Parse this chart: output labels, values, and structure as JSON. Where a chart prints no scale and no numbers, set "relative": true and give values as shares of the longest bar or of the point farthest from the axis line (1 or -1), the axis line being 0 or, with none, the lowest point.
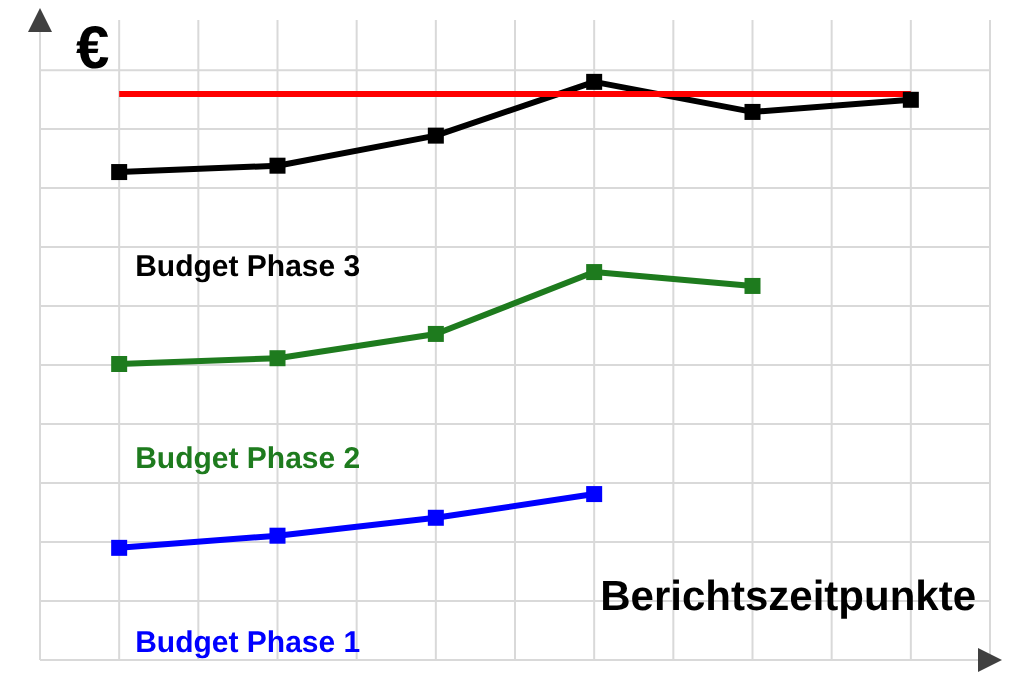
{
  "chart_data": {
    "type": "line",
    "title": "€",
    "xlabel": "Berichtszeitpunkte",
    "relative": true,
    "grid": true,
    "marker": "square",
    "categories": [
      null,
      null,
      null,
      null,
      null,
      null
    ],
    "series": [
      {
        "name": "Budget Phase 3",
        "color": "#000000",
        "values": [
          0.844,
          0.855,
          0.907,
          1,
          0.948,
          0.969
        ]
      },
      {
        "color": "#ff0000",
        "marker": "none",
        "values": [
          0.979,
          0.979,
          0.979,
          0.979,
          0.979,
          0.979
        ]
      },
      {
        "name": "Budget Phase 2",
        "color": "#1e7b1e",
        "values": [
          0.512,
          0.522,
          0.564,
          0.671,
          0.647,
          null
        ]
      },
      {
        "name": "Budget Phase 1",
        "color": "#0000ff",
        "values": [
          0.194,
          0.215,
          0.246,
          0.287,
          null,
          null
        ]
      }
    ]
  }
}
